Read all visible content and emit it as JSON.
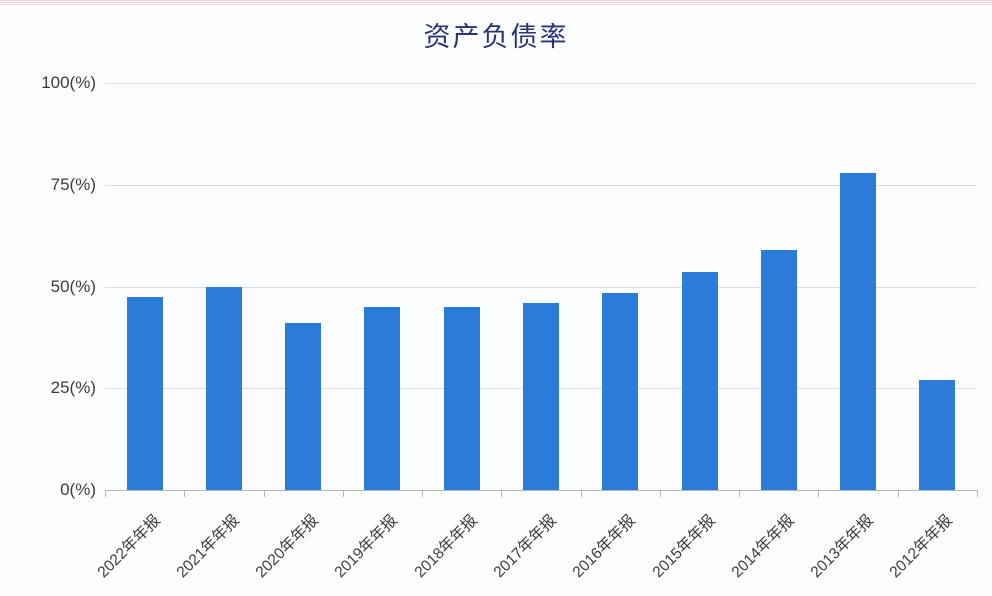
{
  "title": "资产负债率",
  "colors": {
    "bar": "#2b7cd9",
    "title": "#2b3373",
    "axis_labels": "#3c3c3e",
    "gridline": "#dcdee1",
    "axis_line": "#b3b6ba",
    "background": "#fcfdfe",
    "top_edge_artifact": "#e88c96"
  },
  "chart_data": {
    "type": "bar",
    "title": "资产负债率",
    "xlabel": "",
    "ylabel": "",
    "categories": [
      "2022年年报",
      "2021年年报",
      "2020年年报",
      "2019年年报",
      "2018年年报",
      "2017年年报",
      "2016年年报",
      "2015年年报",
      "2014年年报",
      "2013年年报",
      "2012年年报"
    ],
    "values": [
      47.5,
      50,
      41,
      45,
      45,
      46,
      48.5,
      53.5,
      59,
      78,
      27
    ],
    "unit": "%",
    "ylim": [
      0,
      100
    ],
    "yticks": [
      0,
      25,
      50,
      75,
      100
    ],
    "ytick_labels": [
      "0(%)",
      "25(%)",
      "50(%)",
      "75(%)",
      "100(%)"
    ],
    "grid": true,
    "legend_position": "none",
    "xlabel_rotation_deg": 45
  }
}
